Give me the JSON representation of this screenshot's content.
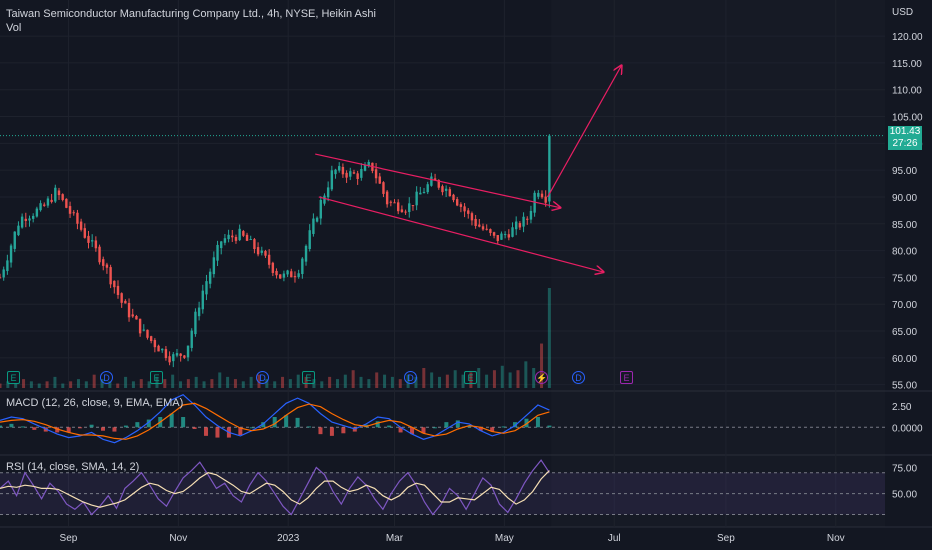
{
  "header": {
    "symbol_line": "Taiwan Semiconductor Manufacturing Company Ltd., 4h, NYSE, Heikin Ashi",
    "volume_label": "Vol",
    "currency": "USD",
    "last_price": "101.43",
    "countdown": "27:26"
  },
  "macd": {
    "label": "MACD (12, 26, close, 9, EMA, EMA)",
    "ticks": [
      "2.50",
      "0.0000"
    ]
  },
  "rsi": {
    "label": "RSI (14, close, SMA, 14, 2)",
    "ticks": [
      "75.00",
      "50.00"
    ]
  },
  "time_axis": [
    "Sep",
    "Nov",
    "2023",
    "Mar",
    "May",
    "Jul",
    "Sep",
    "Nov"
  ],
  "events": [
    {
      "kind": "E",
      "color": "#089981"
    },
    {
      "kind": "D",
      "color": "#2962ff"
    },
    {
      "kind": "E",
      "color": "#089981"
    },
    {
      "kind": "D",
      "color": "#2962ff"
    },
    {
      "kind": "E",
      "color": "#089981"
    },
    {
      "kind": "D",
      "color": "#2962ff"
    },
    {
      "kind": "E",
      "color": "#089981"
    },
    {
      "kind": "⚡",
      "color": "#9c27b0"
    },
    {
      "kind": "D",
      "color": "#2962ff"
    },
    {
      "kind": "E",
      "color": "#9c27b0"
    }
  ],
  "colors": {
    "up": "#26a69a",
    "down": "#ef5350",
    "drawing": "#e91e63",
    "macd": "#2962ff",
    "signal": "#ff6d00",
    "rsi": "#7e57c2",
    "rsi_ma": "#f5deb3"
  },
  "chart_data": {
    "type": "candlestick",
    "title": "Taiwan Semiconductor Manufacturing Company Ltd., 4h, NYSE, Heikin Ashi",
    "y_ticks": [
      "120.00",
      "115.00",
      "110.00",
      "105.00",
      "100.00",
      "95.00",
      "90.00",
      "85.00",
      "80.00",
      "75.00",
      "70.00",
      "65.00",
      "60.00",
      "55.00"
    ],
    "ylim": [
      54,
      123
    ],
    "x_ticks": [
      "Sep",
      "Nov",
      "2023",
      "Mar",
      "May",
      "Jul",
      "Sep",
      "Nov"
    ],
    "close_path": [
      {
        "x": "2022-07-25",
        "y": 75
      },
      {
        "x": "2022-08-05",
        "y": 86
      },
      {
        "x": "2022-08-18",
        "y": 88
      },
      {
        "x": "2022-08-25",
        "y": 91
      },
      {
        "x": "2022-09-08",
        "y": 84
      },
      {
        "x": "2022-09-20",
        "y": 78
      },
      {
        "x": "2022-10-01",
        "y": 70
      },
      {
        "x": "2022-10-14",
        "y": 64
      },
      {
        "x": "2022-10-28",
        "y": 60
      },
      {
        "x": "2022-11-05",
        "y": 61
      },
      {
        "x": "2022-11-14",
        "y": 72
      },
      {
        "x": "2022-11-25",
        "y": 82
      },
      {
        "x": "2022-12-05",
        "y": 83
      },
      {
        "x": "2022-12-15",
        "y": 80
      },
      {
        "x": "2022-12-28",
        "y": 75
      },
      {
        "x": "2023-01-06",
        "y": 76
      },
      {
        "x": "2023-01-18",
        "y": 88
      },
      {
        "x": "2023-01-26",
        "y": 95
      },
      {
        "x": "2023-02-08",
        "y": 94
      },
      {
        "x": "2023-02-16",
        "y": 96
      },
      {
        "x": "2023-02-25",
        "y": 89
      },
      {
        "x": "2023-03-08",
        "y": 88
      },
      {
        "x": "2023-03-22",
        "y": 93
      },
      {
        "x": "2023-04-01",
        "y": 91
      },
      {
        "x": "2023-04-12",
        "y": 86
      },
      {
        "x": "2023-04-26",
        "y": 82
      },
      {
        "x": "2023-05-06",
        "y": 84
      },
      {
        "x": "2023-05-14",
        "y": 86
      },
      {
        "x": "2023-05-19",
        "y": 92
      },
      {
        "x": "2023-05-24",
        "y": 90
      },
      {
        "x": "2023-05-26",
        "y": 101.43
      }
    ],
    "last_price": 101.43,
    "drawings": [
      {
        "type": "channel_upper",
        "from": {
          "x": "2023-01-16",
          "y": 98
        },
        "to": {
          "x": "2023-06-01",
          "y": 88
        }
      },
      {
        "type": "channel_lower",
        "from": {
          "x": "2023-01-18",
          "y": 90
        },
        "to": {
          "x": "2023-06-25",
          "y": 76
        }
      },
      {
        "type": "projection_arrow",
        "from": {
          "x": "2023-05-25",
          "y": 90
        },
        "to": {
          "x": "2023-07-05",
          "y": 114.5
        }
      }
    ],
    "volume_bars": [
      2,
      3,
      2,
      4,
      3,
      2,
      3,
      5,
      2,
      3,
      4,
      3,
      6,
      4,
      3,
      2,
      5,
      3,
      4,
      3,
      5,
      4,
      6,
      3,
      4,
      5,
      3,
      4,
      7,
      5,
      4,
      3,
      5,
      6,
      4,
      3,
      5,
      4,
      6,
      5,
      4,
      3,
      5,
      4,
      6,
      8,
      5,
      4,
      7,
      6,
      5,
      4,
      6,
      5,
      9,
      7,
      5,
      6,
      8,
      6,
      7,
      9,
      6,
      8,
      10,
      7,
      8,
      12,
      9,
      20,
      45
    ],
    "macd": {
      "ticks": [
        "2.50",
        "0.0000"
      ],
      "ylim": [
        -3,
        4
      ],
      "macd": [
        0.8,
        1.2,
        1.0,
        0.4,
        -0.2,
        -0.8,
        -1.2,
        -1.0,
        -0.6,
        -1.4,
        -1.8,
        -1.2,
        -0.4,
        0.6,
        1.8,
        3.2,
        3.8,
        2.6,
        1.2,
        0.2,
        -0.6,
        -1.0,
        -0.4,
        0.4,
        1.6,
        2.8,
        3.4,
        2.8,
        1.6,
        0.6,
        0.2,
        -0.2,
        0.4,
        1.2,
        1.0,
        0.0,
        -0.8,
        -1.4,
        -1.0,
        -0.2,
        0.6,
        0.4,
        -0.4,
        -1.0,
        -0.6,
        0.2,
        1.4,
        2.6,
        2.0
      ],
      "signal": [
        0.6,
        0.8,
        0.9,
        0.7,
        0.3,
        -0.2,
        -0.6,
        -0.9,
        -0.9,
        -1.0,
        -1.3,
        -1.4,
        -1.0,
        -0.3,
        0.6,
        1.6,
        2.6,
        2.8,
        2.2,
        1.4,
        0.6,
        -0.1,
        -0.4,
        -0.2,
        0.4,
        1.4,
        2.3,
        2.7,
        2.4,
        1.6,
        0.9,
        0.3,
        0.1,
        0.5,
        0.8,
        0.6,
        0.0,
        -0.7,
        -1.0,
        -0.8,
        -0.2,
        0.2,
        0.0,
        -0.5,
        -0.7,
        -0.4,
        0.4,
        1.4,
        1.8
      ]
    },
    "rsi": {
      "ticks": [
        "75.00",
        "50.00"
      ],
      "ylim": [
        20,
        85
      ],
      "band": [
        30,
        70
      ],
      "rsi": [
        55,
        62,
        48,
        70,
        58,
        45,
        60,
        52,
        40,
        35,
        42,
        30,
        38,
        48,
        36,
        55,
        62,
        70,
        58,
        45,
        38,
        52,
        65,
        72,
        80,
        68,
        55,
        60,
        48,
        42,
        58,
        70,
        62,
        50,
        38,
        30,
        45,
        60,
        75,
        68,
        52,
        40,
        55,
        66,
        58,
        45,
        35,
        50,
        62,
        70,
        58,
        42,
        30,
        40,
        55,
        48,
        35,
        50,
        65,
        58,
        40,
        32,
        45,
        60,
        72,
        82,
        70
      ],
      "rsi_ma": [
        55,
        57,
        56,
        58,
        57,
        55,
        55,
        54,
        50,
        46,
        42,
        39,
        37,
        39,
        41,
        44,
        50,
        56,
        60,
        58,
        53,
        50,
        52,
        58,
        65,
        70,
        68,
        63,
        58,
        52,
        50,
        55,
        60,
        58,
        52,
        44,
        40,
        46,
        55,
        62,
        62,
        56,
        52,
        54,
        58,
        55,
        48,
        44,
        48,
        56,
        60,
        58,
        50,
        42,
        42,
        46,
        45,
        44,
        50,
        56,
        54,
        46,
        40,
        44,
        52,
        64,
        72
      ]
    }
  }
}
